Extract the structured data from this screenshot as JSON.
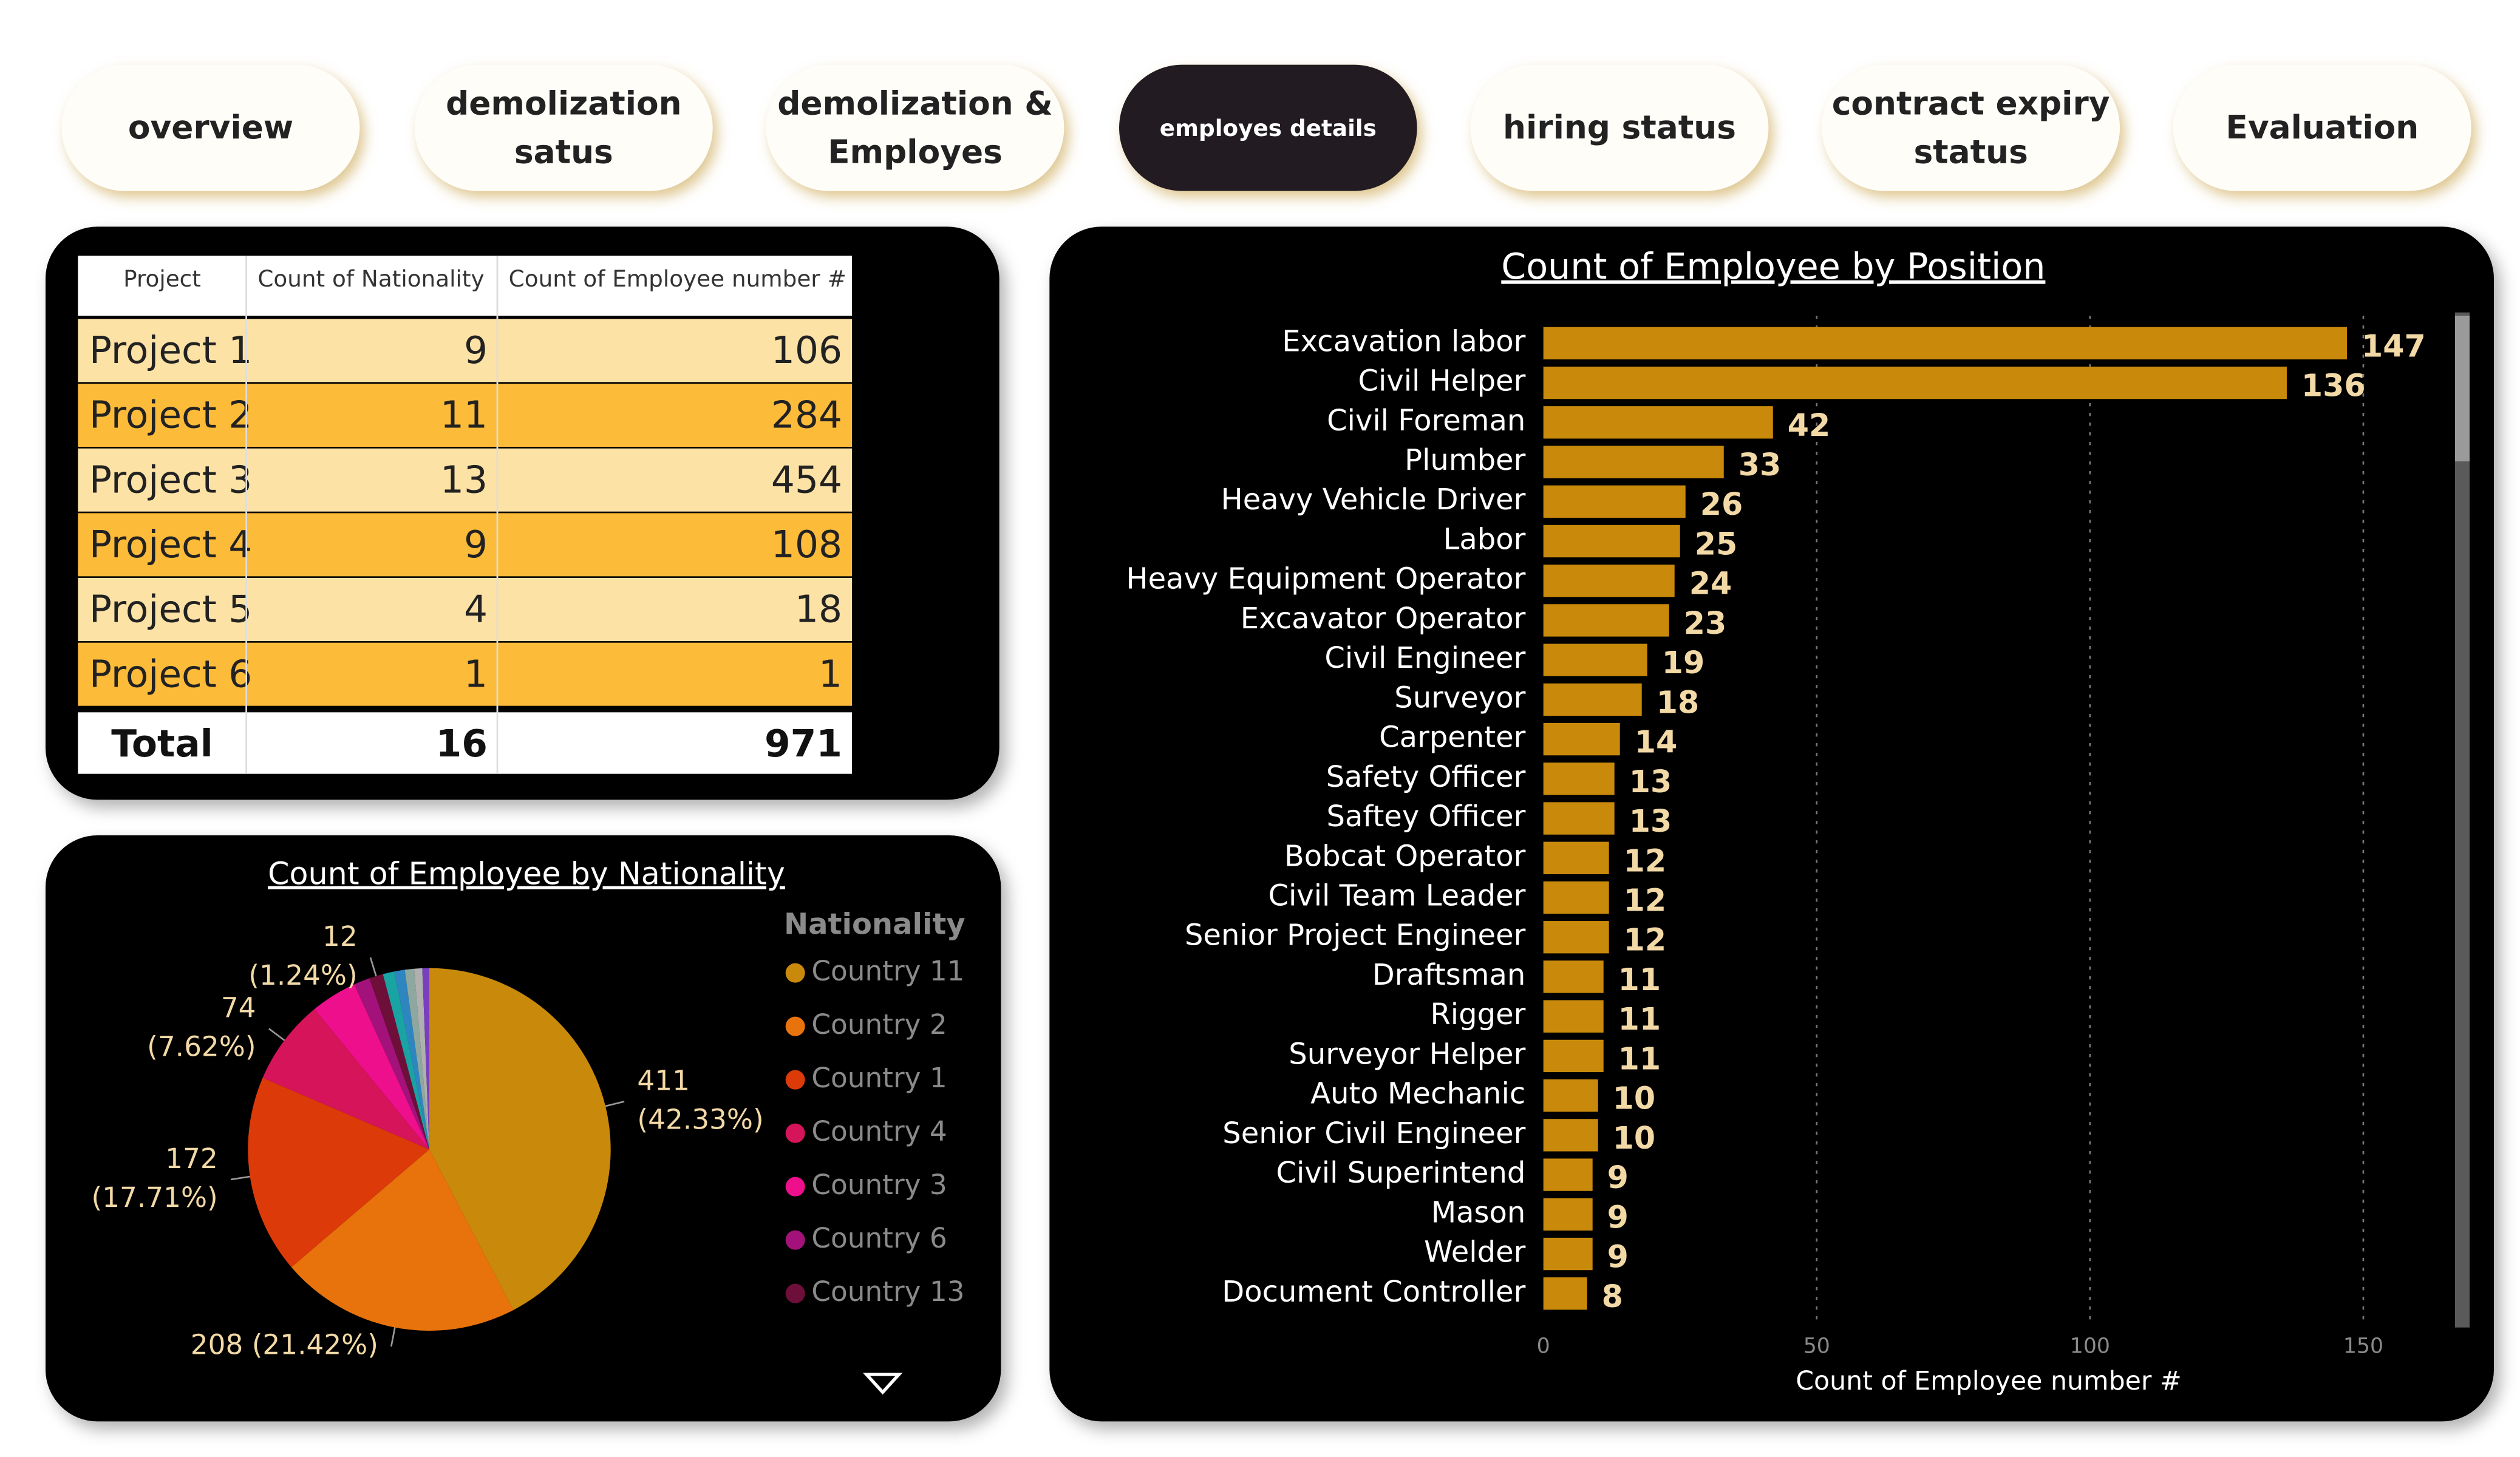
{
  "nav": {
    "tabs": [
      {
        "label": "overview",
        "active": false
      },
      {
        "label": "demolization\nsatus",
        "active": false
      },
      {
        "label": "demolization &\nEmployes",
        "active": false
      },
      {
        "label": "employes details",
        "active": true
      },
      {
        "label": "hiring status",
        "active": false
      },
      {
        "label": "contract expiry\nstatus",
        "active": false
      },
      {
        "label": "Evaluation",
        "active": false
      }
    ]
  },
  "table": {
    "header": [
      "Project",
      "Count of Nationality",
      "Count of Employee number #"
    ],
    "rows": [
      [
        "Project 1",
        9,
        106
      ],
      [
        "Project 2",
        11,
        284
      ],
      [
        "Project 3",
        13,
        454
      ],
      [
        "Project 4",
        9,
        108
      ],
      [
        "Project 5",
        4,
        18
      ],
      [
        "Project 6",
        1,
        1
      ]
    ],
    "total": [
      "Total",
      16,
      971
    ]
  },
  "chart_data": [
    {
      "type": "pie",
      "title": "Count of Employee by Nationality",
      "legend_title": "Nationality",
      "categories": [
        "Country 11",
        "Country 2",
        "Country 1",
        "Country 4",
        "Country 3",
        "Country 6",
        "Country 13",
        null,
        null,
        null,
        null,
        null
      ],
      "values": [
        411,
        208,
        172,
        74,
        40,
        14,
        12,
        10,
        9,
        8,
        7,
        6
      ],
      "value_labels": [
        "411\n(42.33%)",
        "208 (21.42%)",
        "172\n(17.71%)",
        "74\n(7.62%)",
        null,
        null,
        "12\n(1.24%)",
        null,
        null,
        null,
        null,
        null
      ],
      "colors": [
        "#c98a0b",
        "#e8730c",
        "#dd3a0a",
        "#d6145a",
        "#ee0f8d",
        "#a3127a",
        "#6e0f3a",
        "#1aa3a3",
        "#2e86c1",
        "#8ea8a0",
        "#b0b0b0",
        "#7a3fbf"
      ]
    },
    {
      "type": "bar",
      "orientation": "horizontal",
      "title": "Count of Employee by Position",
      "x_label": "Count of Employee number #",
      "color": "#c98a0b",
      "categories": [
        "Excavation labor",
        "Civil Helper",
        "Civil Foreman",
        "Plumber",
        "Heavy Vehicle Driver",
        "Labor",
        "Heavy Equipment Operator",
        "Excavator Operator",
        "Civil Engineer",
        "Surveyor",
        "Carpenter",
        "Safety Officer",
        "Saftey Officer",
        "Bobcat Operator",
        "Civil Team Leader",
        "Senior Project Engineer",
        "Draftsman",
        "Rigger",
        "Surveyor Helper",
        "Auto Mechanic",
        "Senior Civil Engineer",
        "Civil Superintend",
        "Mason",
        "Welder",
        "Document Controller"
      ],
      "values": [
        147,
        136,
        42,
        33,
        26,
        25,
        24,
        23,
        19,
        18,
        14,
        13,
        13,
        12,
        12,
        12,
        11,
        11,
        11,
        10,
        10,
        9,
        9,
        9,
        8
      ],
      "xlim": [
        0,
        165
      ],
      "xticks": [
        0,
        50,
        100,
        150
      ],
      "grid": true
    }
  ]
}
